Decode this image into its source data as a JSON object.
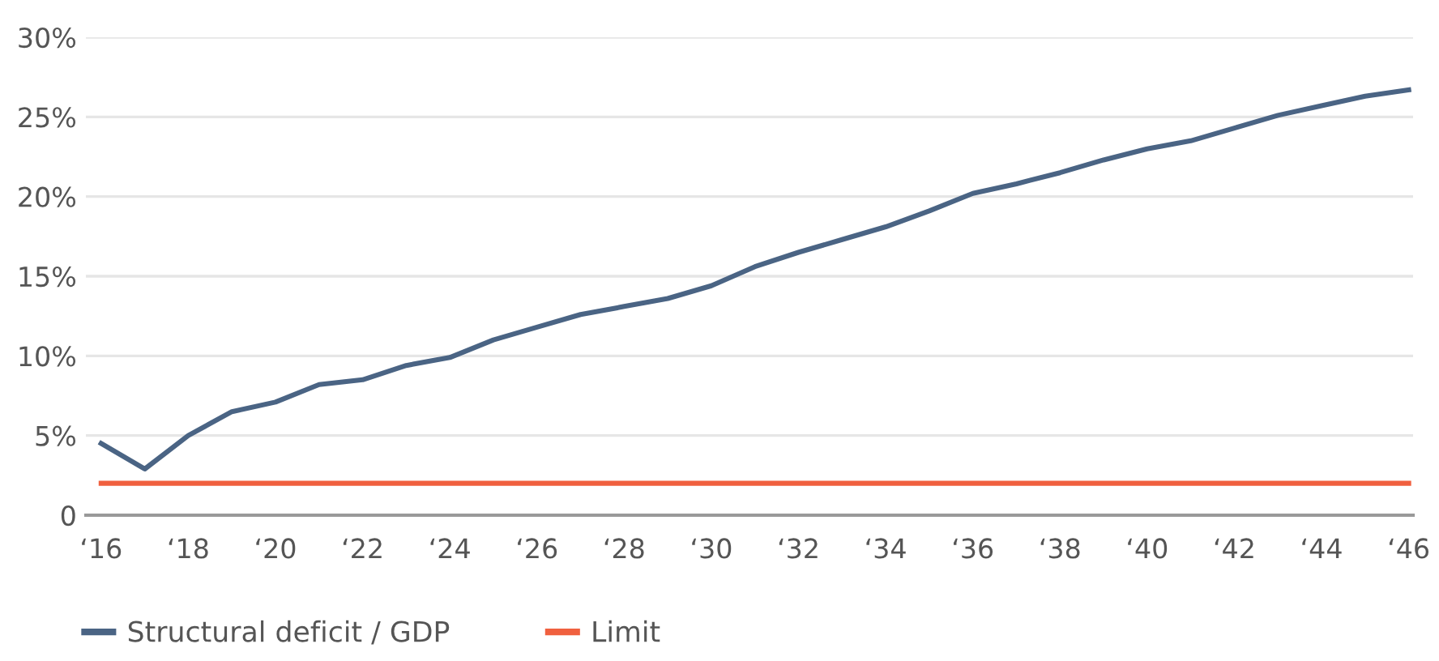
{
  "chart_data": {
    "type": "line",
    "categories": [
      "‘16",
      null,
      "‘18",
      null,
      "‘20",
      null,
      "‘22",
      null,
      "‘24",
      null,
      "‘26",
      null,
      "‘28",
      null,
      "‘30",
      null,
      "‘32",
      null,
      "‘34",
      null,
      "‘36",
      null,
      "‘38",
      null,
      "‘40",
      null,
      "‘42",
      null,
      "‘44",
      null,
      "‘46"
    ],
    "series": [
      {
        "name": "Structural deficit / GDP",
        "color": "#4a6484",
        "values": [
          4.5,
          2.9,
          5.0,
          6.5,
          7.1,
          8.2,
          8.5,
          9.4,
          9.9,
          11.0,
          11.8,
          12.6,
          13.1,
          13.6,
          14.4,
          15.6,
          16.5,
          17.3,
          18.1,
          19.1,
          20.2,
          20.8,
          21.5,
          22.3,
          23.0,
          23.5,
          24.3,
          25.1,
          25.7,
          26.3,
          26.7
        ]
      },
      {
        "name": "Limit",
        "color": "#f0603f",
        "values": [
          2,
          2,
          2,
          2,
          2,
          2,
          2,
          2,
          2,
          2,
          2,
          2,
          2,
          2,
          2,
          2,
          2,
          2,
          2,
          2,
          2,
          2,
          2,
          2,
          2,
          2,
          2,
          2,
          2,
          2,
          2
        ]
      }
    ],
    "ylim": [
      0,
      30
    ],
    "yticks": [
      0,
      {
        "value": 5,
        "label": "5%"
      },
      {
        "value": 10,
        "label": "10%"
      },
      {
        "value": 15,
        "label": "15%"
      },
      {
        "value": 20,
        "label": "20%"
      },
      {
        "value": 25,
        "label": "25%"
      },
      {
        "value": 30,
        "label": "30%"
      }
    ],
    "grid": "y",
    "legend": "bottom left",
    "marker": "none",
    "line_style": "solid"
  }
}
